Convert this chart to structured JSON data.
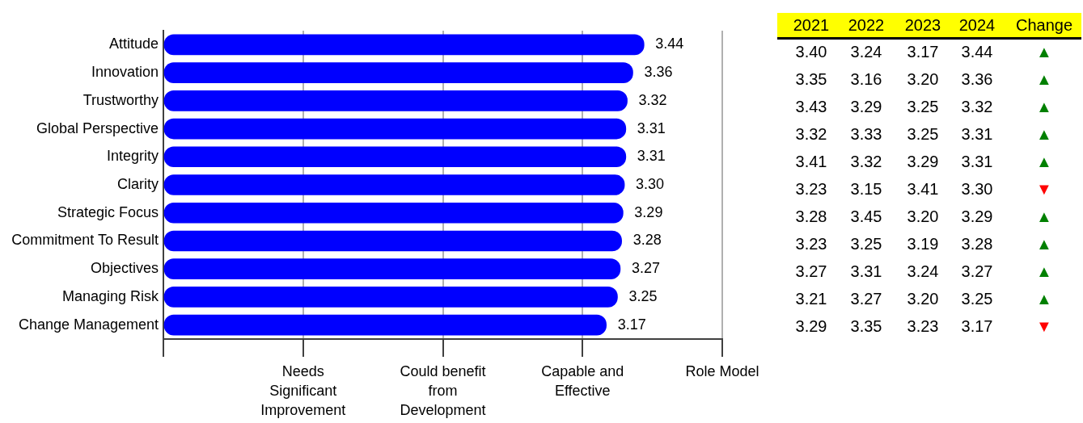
{
  "chart_data": [
    {
      "type": "bar",
      "orientation": "horizontal",
      "categories": [
        "Attitude",
        "Innovation",
        "Trustworthy",
        "Global Perspective",
        "Integrity",
        "Clarity",
        "Strategic Focus",
        "Commitment To Result",
        "Objectives",
        "Managing Risk",
        "Change Management"
      ],
      "values": [
        3.44,
        3.36,
        3.32,
        3.31,
        3.31,
        3.3,
        3.29,
        3.28,
        3.27,
        3.25,
        3.17
      ],
      "value_labels": [
        "3.44",
        "3.36",
        "3.32",
        "3.31",
        "3.31",
        "3.30",
        "3.29",
        "3.28",
        "3.27",
        "3.25",
        "3.17"
      ],
      "color": "#0000ff",
      "xlim": [
        0,
        4
      ],
      "xticks": [
        {
          "value": 0,
          "label": null
        },
        {
          "value": 1,
          "label": null
        },
        {
          "value": 2,
          "label": null
        },
        {
          "value": 3,
          "label": null
        },
        {
          "value": 4,
          "label": null
        }
      ],
      "tick_labels": "y",
      "annotations": [
        "Needs Significant Improvement",
        "Could benefit from Development",
        "Capable and Effective",
        "Role Model"
      ],
      "grid": "x",
      "legend": false
    },
    {
      "type": "heatmap",
      "categories": [
        "2021",
        "2022",
        "2023",
        "2024",
        "Change"
      ],
      "y_categories": [
        null,
        null,
        null,
        null,
        null,
        null,
        null,
        null,
        null,
        null,
        null
      ],
      "cells": [
        [
          3.4,
          3.24,
          3.17,
          3.44,
          null
        ],
        [
          3.35,
          3.16,
          3.2,
          3.36,
          null
        ],
        [
          3.43,
          3.29,
          3.25,
          3.32,
          null
        ],
        [
          3.32,
          3.33,
          3.25,
          3.31,
          null
        ],
        [
          3.41,
          3.32,
          3.29,
          3.31,
          null
        ],
        [
          3.23,
          3.15,
          3.41,
          3.3,
          null
        ],
        [
          3.28,
          3.45,
          3.2,
          3.29,
          null
        ],
        [
          3.23,
          3.25,
          3.19,
          3.28,
          null
        ],
        [
          3.27,
          3.31,
          3.24,
          3.27,
          null
        ],
        [
          3.21,
          3.27,
          3.2,
          3.25,
          null
        ],
        [
          3.29,
          3.35,
          3.23,
          3.17,
          null
        ]
      ],
      "cell_labels": [
        [
          "3.40",
          "3.24",
          "3.17",
          "3.44",
          "▲"
        ],
        [
          "3.35",
          "3.16",
          "3.20",
          "3.36",
          "▲"
        ],
        [
          "3.43",
          "3.29",
          "3.25",
          "3.32",
          "▲"
        ],
        [
          "3.32",
          "3.33",
          "3.25",
          "3.31",
          "▲"
        ],
        [
          "3.41",
          "3.32",
          "3.29",
          "3.31",
          "▲"
        ],
        [
          "3.23",
          "3.15",
          "3.41",
          "3.30",
          "▼"
        ],
        [
          "3.28",
          "3.45",
          "3.20",
          "3.29",
          "▲"
        ],
        [
          "3.23",
          "3.25",
          "3.19",
          "3.28",
          "▲"
        ],
        [
          "3.27",
          "3.31",
          "3.24",
          "3.27",
          "▲"
        ],
        [
          "3.21",
          "3.27",
          "3.20",
          "3.25",
          "▲"
        ],
        [
          "3.29",
          "3.35",
          "3.23",
          "3.17",
          "▼"
        ]
      ]
    }
  ]
}
